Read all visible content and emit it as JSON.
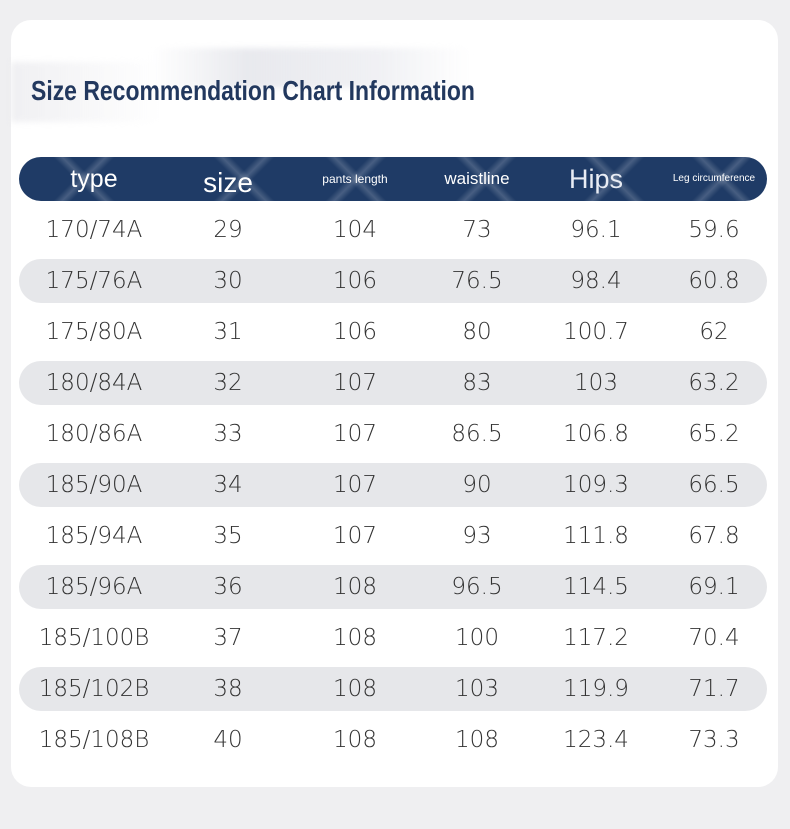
{
  "page": {
    "title": "Size Recommendation Chart Information"
  },
  "table": {
    "headers": [
      "type",
      "size",
      "pants length",
      "waistline",
      "Hips",
      "Leg circumference"
    ],
    "rows": [
      [
        "170/74A",
        "29",
        "104",
        "73",
        "96.1",
        "59.6"
      ],
      [
        "175/76A",
        "30",
        "106",
        "76.5",
        "98.4",
        "60.8"
      ],
      [
        "175/80A",
        "31",
        "106",
        "80",
        "100.7",
        "62"
      ],
      [
        "180/84A",
        "32",
        "107",
        "83",
        "103",
        "63.2"
      ],
      [
        "180/86A",
        "33",
        "107",
        "86.5",
        "106.8",
        "65.2"
      ],
      [
        "185/90A",
        "34",
        "107",
        "90",
        "109.3",
        "66.5"
      ],
      [
        "185/94A",
        "35",
        "107",
        "93",
        "111.8",
        "67.8"
      ],
      [
        "185/96A",
        "36",
        "108",
        "96.5",
        "114.5",
        "69.1"
      ],
      [
        "185/100B",
        "37",
        "108",
        "100",
        "117.2",
        "70.4"
      ],
      [
        "185/102B",
        "38",
        "108",
        "103",
        "119.9",
        "71.7"
      ],
      [
        "185/108B",
        "40",
        "108",
        "108",
        "123.4",
        "73.3"
      ]
    ]
  },
  "colors": {
    "header_background": "#1f3b66",
    "title_color": "#22385e",
    "stripe_background": "#e6e7ea",
    "page_background": "#efeff1"
  }
}
